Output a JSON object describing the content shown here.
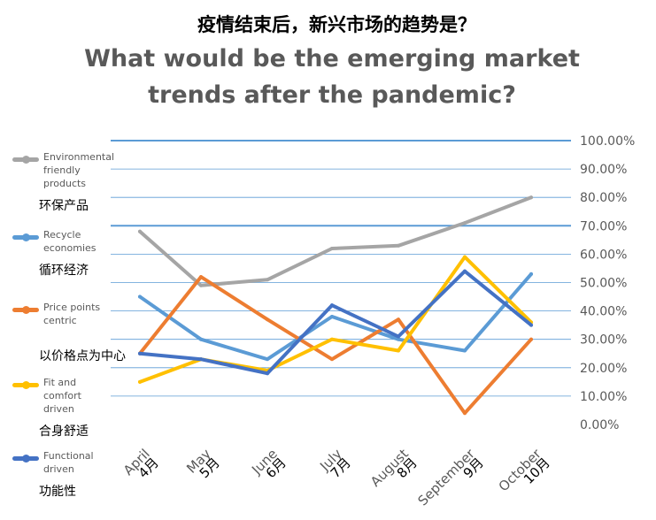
{
  "title_cn": "疫情结束后，新兴市场的趋势是？",
  "title_en": "What would be the emerging market trends after the pandemic?",
  "chart_data": {
    "type": "line",
    "categories": [
      {
        "en": "April",
        "cn": "4月"
      },
      {
        "en": "May",
        "cn": "5月"
      },
      {
        "en": "June",
        "cn": "6月"
      },
      {
        "en": "July",
        "cn": "7月"
      },
      {
        "en": "August",
        "cn": "8月"
      },
      {
        "en": "September",
        "cn": "9月"
      },
      {
        "en": "October",
        "cn": "10月"
      }
    ],
    "ylim": [
      0,
      100
    ],
    "yticks": [
      "0.00%",
      "10.00%",
      "20.00%",
      "30.00%",
      "40.00%",
      "50.00%",
      "60.00%",
      "70.00%",
      "80.00%",
      "90.00%",
      "100.00%"
    ],
    "grid": true,
    "legend_position": "left",
    "series": [
      {
        "name": "Environmental friendly products",
        "name_cn": "环保产品",
        "color": "#A5A5A5",
        "values": [
          68,
          49,
          51,
          62,
          63,
          71,
          80
        ]
      },
      {
        "name": "Recycle economies",
        "name_cn": "循环经济",
        "color": "#5B9BD5",
        "values": [
          45,
          30,
          23,
          38,
          30,
          26,
          53
        ]
      },
      {
        "name": "Price points centric",
        "name_cn": "以价格点为中心",
        "color": "#ED7D31",
        "values": [
          25,
          52,
          37,
          23,
          37,
          4,
          30
        ]
      },
      {
        "name": "Fit and comfort driven",
        "name_cn": "合身舒适",
        "color": "#FFC000",
        "values": [
          15,
          23,
          19,
          30,
          26,
          59,
          36
        ]
      },
      {
        "name": "Functional driven",
        "name_cn": "功能性",
        "color": "#4472C4",
        "values": [
          25,
          23,
          18,
          42,
          31,
          54,
          35
        ]
      }
    ]
  }
}
